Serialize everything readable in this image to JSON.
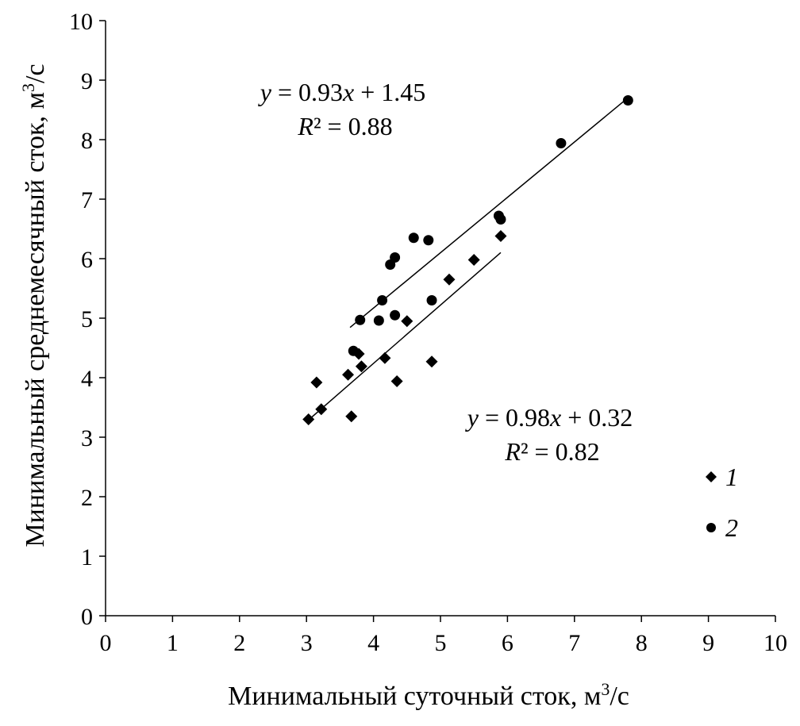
{
  "chart_data": {
    "type": "scatter",
    "xlabel": "Минимальный суточный сток, м",
    "xlabel_sup": "3",
    "xlabel_tail": "/с",
    "ylabel": "Минимальный среднемесячный сток, м",
    "ylabel_sup": "3",
    "ylabel_tail": "/с",
    "xlim": [
      0,
      10
    ],
    "ylim": [
      0,
      10
    ],
    "x_ticks": [
      "0",
      "1",
      "2",
      "3",
      "4",
      "5",
      "6",
      "7",
      "8",
      "9",
      "10"
    ],
    "y_ticks": [
      "0",
      "1",
      "2",
      "3",
      "4",
      "5",
      "6",
      "7",
      "8",
      "9",
      "10"
    ],
    "grid": false,
    "legend_position": "bottom-right",
    "series": [
      {
        "name": "1",
        "marker": "diamond",
        "color": "#000000",
        "points": [
          [
            3.03,
            3.3
          ],
          [
            3.15,
            3.92
          ],
          [
            3.22,
            3.47
          ],
          [
            3.62,
            4.05
          ],
          [
            3.67,
            3.35
          ],
          [
            3.78,
            4.4
          ],
          [
            3.82,
            4.19
          ],
          [
            4.17,
            4.33
          ],
          [
            4.35,
            3.94
          ],
          [
            4.5,
            4.95
          ],
          [
            4.87,
            4.27
          ],
          [
            5.13,
            5.65
          ],
          [
            5.5,
            5.98
          ],
          [
            5.9,
            6.38
          ]
        ],
        "trendline": {
          "slope": 0.98,
          "intercept": 0.32,
          "x_range": [
            3.0,
            5.9
          ],
          "equation_y": "y",
          "equation_rest": " = 0.98",
          "equation_x": "x",
          "equation_tail": " + 0.32",
          "r2_label": "R",
          "r2_rest": "² = 0.82"
        }
      },
      {
        "name": "2",
        "marker": "circle",
        "color": "#000000",
        "points": [
          [
            3.7,
            4.45
          ],
          [
            3.8,
            4.97
          ],
          [
            4.08,
            4.96
          ],
          [
            4.13,
            5.3
          ],
          [
            4.25,
            5.9
          ],
          [
            4.32,
            6.02
          ],
          [
            4.32,
            5.05
          ],
          [
            4.6,
            6.35
          ],
          [
            4.82,
            6.31
          ],
          [
            4.87,
            5.3
          ],
          [
            5.87,
            6.72
          ],
          [
            5.9,
            6.66
          ],
          [
            6.8,
            7.94
          ],
          [
            7.8,
            8.66
          ]
        ],
        "trendline": {
          "slope": 0.93,
          "intercept": 1.45,
          "x_range": [
            3.65,
            7.78
          ],
          "equation_y": "y",
          "equation_rest": " = 0.93",
          "equation_x": "x",
          "equation_tail": " + 1.45",
          "r2_label": "R",
          "r2_rest": "² = 0.88"
        }
      }
    ]
  }
}
